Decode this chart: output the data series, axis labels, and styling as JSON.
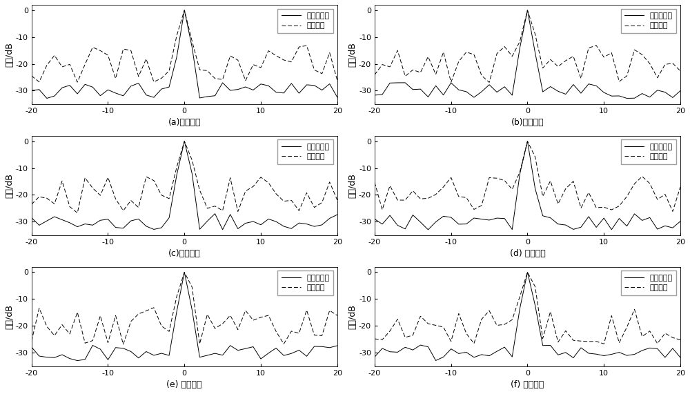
{
  "n_panels": 6,
  "labels": [
    "(a)延迟单元",
    "(b)延迟单元",
    "(c)延迟单元",
    "(d) 延迟单元",
    "(e) 延迟单元",
    "(f) 延迟单元"
  ],
  "ylabel": "幅度/dB",
  "xlim": [
    -20,
    20
  ],
  "ylim": [
    -35,
    2
  ],
  "yticks": [
    0,
    -10,
    -20,
    -30
  ],
  "xticks": [
    -20,
    -10,
    0,
    10,
    20
  ],
  "legend1": "本发明方法",
  "legend2": "遗传算法",
  "solid_color": "#000000",
  "dashed_color": "#000000",
  "bg_color": "#ffffff",
  "figsize": [
    10.0,
    5.71
  ],
  "dpi": 100,
  "solid_seeds": [
    101,
    202,
    303,
    404,
    505,
    606
  ],
  "dashed_seeds": [
    11,
    22,
    33,
    44,
    55,
    66
  ]
}
